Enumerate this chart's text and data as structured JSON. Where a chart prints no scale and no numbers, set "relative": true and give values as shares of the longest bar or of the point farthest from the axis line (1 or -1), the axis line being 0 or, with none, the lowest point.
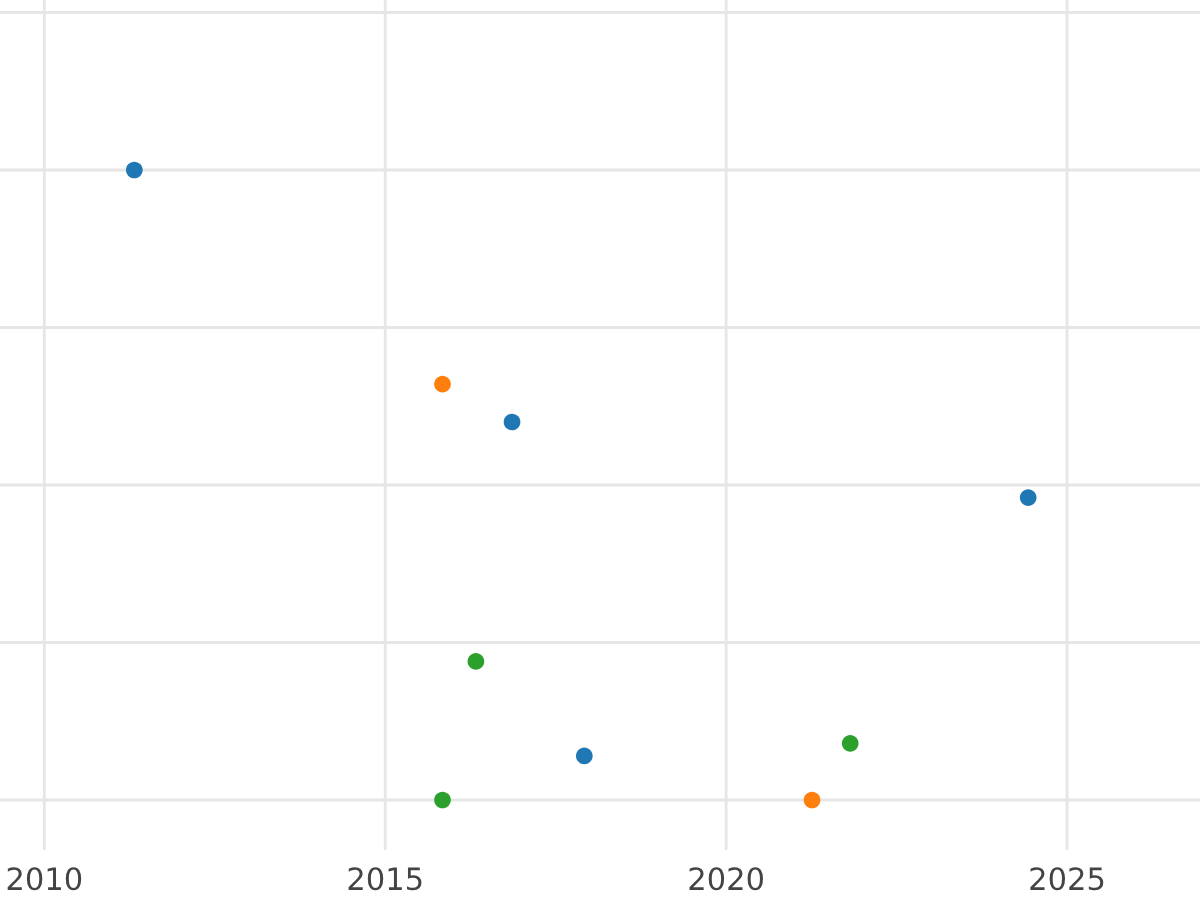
{
  "chart_data": {
    "type": "scatter",
    "relative": true,
    "series": [
      {
        "color": "#1f77b4",
        "x": [
          2011.32,
          2016.86,
          2024.43,
          2017.92
        ],
        "values": [
          1,
          0.6,
          0.48,
          0.07
        ]
      },
      {
        "color": "#ff7f0e",
        "x": [
          2015.84,
          2021.26
        ],
        "values": [
          0.66,
          0
        ]
      },
      {
        "color": "#2ca02c",
        "x": [
          2016.33,
          2021.82,
          2015.84
        ],
        "values": [
          0.22,
          0.09,
          0
        ]
      }
    ],
    "xlim": [
      2009.35,
      2026.95
    ],
    "xticks": [
      2010,
      2015,
      2020,
      2025
    ],
    "grid": true,
    "marker": "circle",
    "tick_labels": "x"
  }
}
